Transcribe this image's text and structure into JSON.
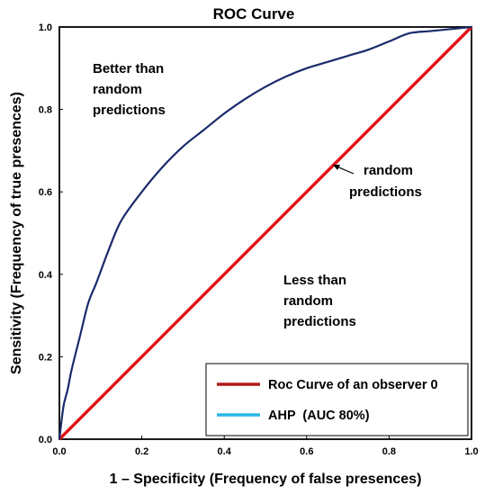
{
  "chart_data": {
    "type": "line",
    "title": "ROC Curve",
    "xlabel": "1 – Specificity (Frequency of false presences)",
    "ylabel": "Sensitivity (Frequency of true presences)",
    "xlim": [
      0,
      1
    ],
    "ylim": [
      0,
      1
    ],
    "x_ticks": [
      "0.0",
      "0.2",
      "0.4",
      "0.6",
      "0.8",
      "1.0"
    ],
    "y_ticks": [
      "0.0",
      "0.2",
      "0.4",
      "0.6",
      "0.8",
      "1.0"
    ],
    "grid": false,
    "legend_position": "bottom-right",
    "series": [
      {
        "name": "AHP  (AUC 80%)",
        "color": "#1b2a6b",
        "legend_color": "#29b6e8",
        "x": [
          0,
          0.01,
          0.02,
          0.03,
          0.05,
          0.07,
          0.09,
          0.12,
          0.15,
          0.2,
          0.25,
          0.3,
          0.35,
          0.4,
          0.45,
          0.5,
          0.55,
          0.6,
          0.65,
          0.7,
          0.75,
          0.8,
          0.85,
          0.9,
          0.95,
          1.0
        ],
        "y": [
          0,
          0.08,
          0.12,
          0.17,
          0.25,
          0.33,
          0.38,
          0.46,
          0.53,
          0.6,
          0.66,
          0.71,
          0.75,
          0.79,
          0.825,
          0.855,
          0.88,
          0.9,
          0.915,
          0.93,
          0.945,
          0.965,
          0.985,
          0.99,
          0.995,
          1.0
        ]
      },
      {
        "name": "Roc Curve of an observer 0",
        "color": "#e0141e",
        "legend_color": "#b01c1c",
        "x": [
          0,
          1
        ],
        "y": [
          0,
          1
        ]
      }
    ],
    "annotations": [
      {
        "lines": [
          "Better than",
          "random",
          "predictions"
        ]
      },
      {
        "lines": [
          "random",
          "predictions"
        ],
        "arrow_to": [
          0.66,
          0.66
        ]
      },
      {
        "lines": [
          "Less than",
          "random",
          "predictions"
        ]
      }
    ]
  }
}
